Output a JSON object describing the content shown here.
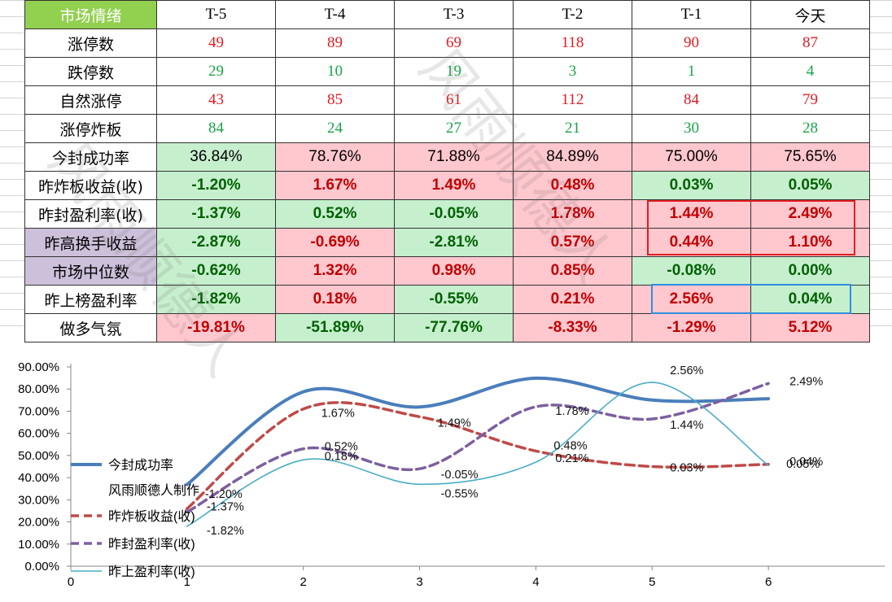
{
  "table": {
    "header": [
      "市场情绪",
      "T-5",
      "T-4",
      "T-3",
      "T-2",
      "T-1",
      "今天"
    ],
    "rows": [
      {
        "label": "涨停数",
        "style": "plain",
        "values": [
          "49",
          "89",
          "69",
          "118",
          "90",
          "87"
        ],
        "colors": [
          "red",
          "red",
          "red",
          "red",
          "red",
          "red"
        ]
      },
      {
        "label": "跌停数",
        "style": "plain",
        "values": [
          "29",
          "10",
          "19",
          "3",
          "1",
          "4"
        ],
        "colors": [
          "green",
          "green",
          "green",
          "green",
          "green",
          "green"
        ]
      },
      {
        "label": "自然涨停",
        "style": "plain",
        "values": [
          "43",
          "85",
          "61",
          "112",
          "84",
          "79"
        ],
        "colors": [
          "red",
          "red",
          "red",
          "red",
          "red",
          "red"
        ]
      },
      {
        "label": "涨停炸板",
        "style": "plain",
        "values": [
          "84",
          "24",
          "27",
          "21",
          "30",
          "28"
        ],
        "colors": [
          "green",
          "green",
          "green",
          "green",
          "green",
          "green"
        ]
      },
      {
        "label": "今封成功率",
        "style": "pct",
        "values": [
          "36.84%",
          "78.76%",
          "71.88%",
          "84.89%",
          "75.00%",
          "75.65%"
        ],
        "colors": [
          "green",
          "red",
          "red",
          "red",
          "red",
          "red"
        ]
      },
      {
        "label": "昨炸板收益(收)",
        "style": "bold",
        "values": [
          "-1.20%",
          "1.67%",
          "1.49%",
          "0.48%",
          "0.03%",
          "0.05%"
        ],
        "colors": [
          "green",
          "red",
          "red",
          "red",
          "green",
          "green"
        ]
      },
      {
        "label": "昨封盈利率(收)",
        "style": "bold",
        "values": [
          "-1.37%",
          "0.52%",
          "-0.05%",
          "1.78%",
          "1.44%",
          "2.49%"
        ],
        "colors": [
          "green",
          "green",
          "green",
          "red",
          "red",
          "red"
        ]
      },
      {
        "label": "昨高换手收益",
        "style": "bold",
        "label_bg": "purple",
        "values": [
          "-2.87%",
          "-0.69%",
          "-2.81%",
          "0.57%",
          "0.44%",
          "1.10%"
        ],
        "colors": [
          "green",
          "red",
          "green",
          "red",
          "red",
          "red"
        ]
      },
      {
        "label": "市场中位数",
        "style": "bold",
        "label_bg": "purple",
        "values": [
          "-0.62%",
          "1.32%",
          "0.98%",
          "0.85%",
          "-0.08%",
          "0.00%"
        ],
        "colors": [
          "green",
          "red",
          "red",
          "red",
          "green",
          "green"
        ]
      },
      {
        "label": "昨上榜盈利率",
        "style": "bold",
        "values": [
          "-1.82%",
          "0.18%",
          "-0.55%",
          "0.21%",
          "2.56%",
          "0.04%"
        ],
        "colors": [
          "green",
          "red",
          "green",
          "red",
          "red",
          "green"
        ]
      },
      {
        "label": "做多气氛",
        "style": "bold",
        "values": [
          "-19.81%",
          "-51.89%",
          "-77.76%",
          "-8.33%",
          "-1.29%",
          "5.12%"
        ],
        "colors": [
          "red",
          "green",
          "green",
          "red",
          "red",
          "red"
        ]
      }
    ]
  },
  "watermark": "风雨顺德人",
  "colors": {
    "pink": "#ffc7ce",
    "green_bg": "#c6efce",
    "red_text": "#c00000",
    "green_text": "#006100"
  },
  "chart_data": {
    "type": "line",
    "x": [
      1,
      2,
      3,
      4,
      5,
      6
    ],
    "xticks": [
      "0",
      "1",
      "2",
      "3",
      "4",
      "5",
      "6"
    ],
    "yticks": [
      "0.00%",
      "10.00%",
      "20.00%",
      "30.00%",
      "40.00%",
      "50.00%",
      "60.00%",
      "70.00%",
      "80.00%",
      "90.00%"
    ],
    "ylim": [
      0,
      90
    ],
    "xlim": [
      0,
      7
    ],
    "series": [
      {
        "name": "今封成功率",
        "values": [
          36.84,
          78.76,
          71.88,
          84.89,
          75.0,
          75.65
        ],
        "color": "#4a7ebb",
        "dash": "solid",
        "labels": []
      },
      {
        "name": "昨炸板收益(收)",
        "values": [
          26.0,
          71.0,
          67.5,
          52.0,
          45.0,
          46.0
        ],
        "color": "#be4b48",
        "dash": "dashed",
        "labels": [
          "-1.20%",
          "1.67%",
          "1.49%",
          "0.48%",
          "0.03%",
          "0.05%"
        ]
      },
      {
        "name": "昨封盈利率(收)",
        "values": [
          24.5,
          53.0,
          44.0,
          72.0,
          66.5,
          82.5
        ],
        "color": "#7d60a0",
        "dash": "dashed",
        "labels": [
          "-1.37%",
          "0.52%",
          "-0.05%",
          "1.78%",
          "1.44%",
          "2.49%"
        ]
      },
      {
        "name": "昨上盈利率(收)",
        "values": [
          18.0,
          48.0,
          37.0,
          47.0,
          83.0,
          45.5
        ],
        "color": "#4bacc6",
        "dash": "solid",
        "labels": [
          "-1.82%",
          "0.18%",
          "-0.55%",
          "0.21%",
          "2.56%",
          "0.04%"
        ]
      }
    ],
    "annotation": "风雨顺德人制作",
    "legend_placement": "left"
  }
}
